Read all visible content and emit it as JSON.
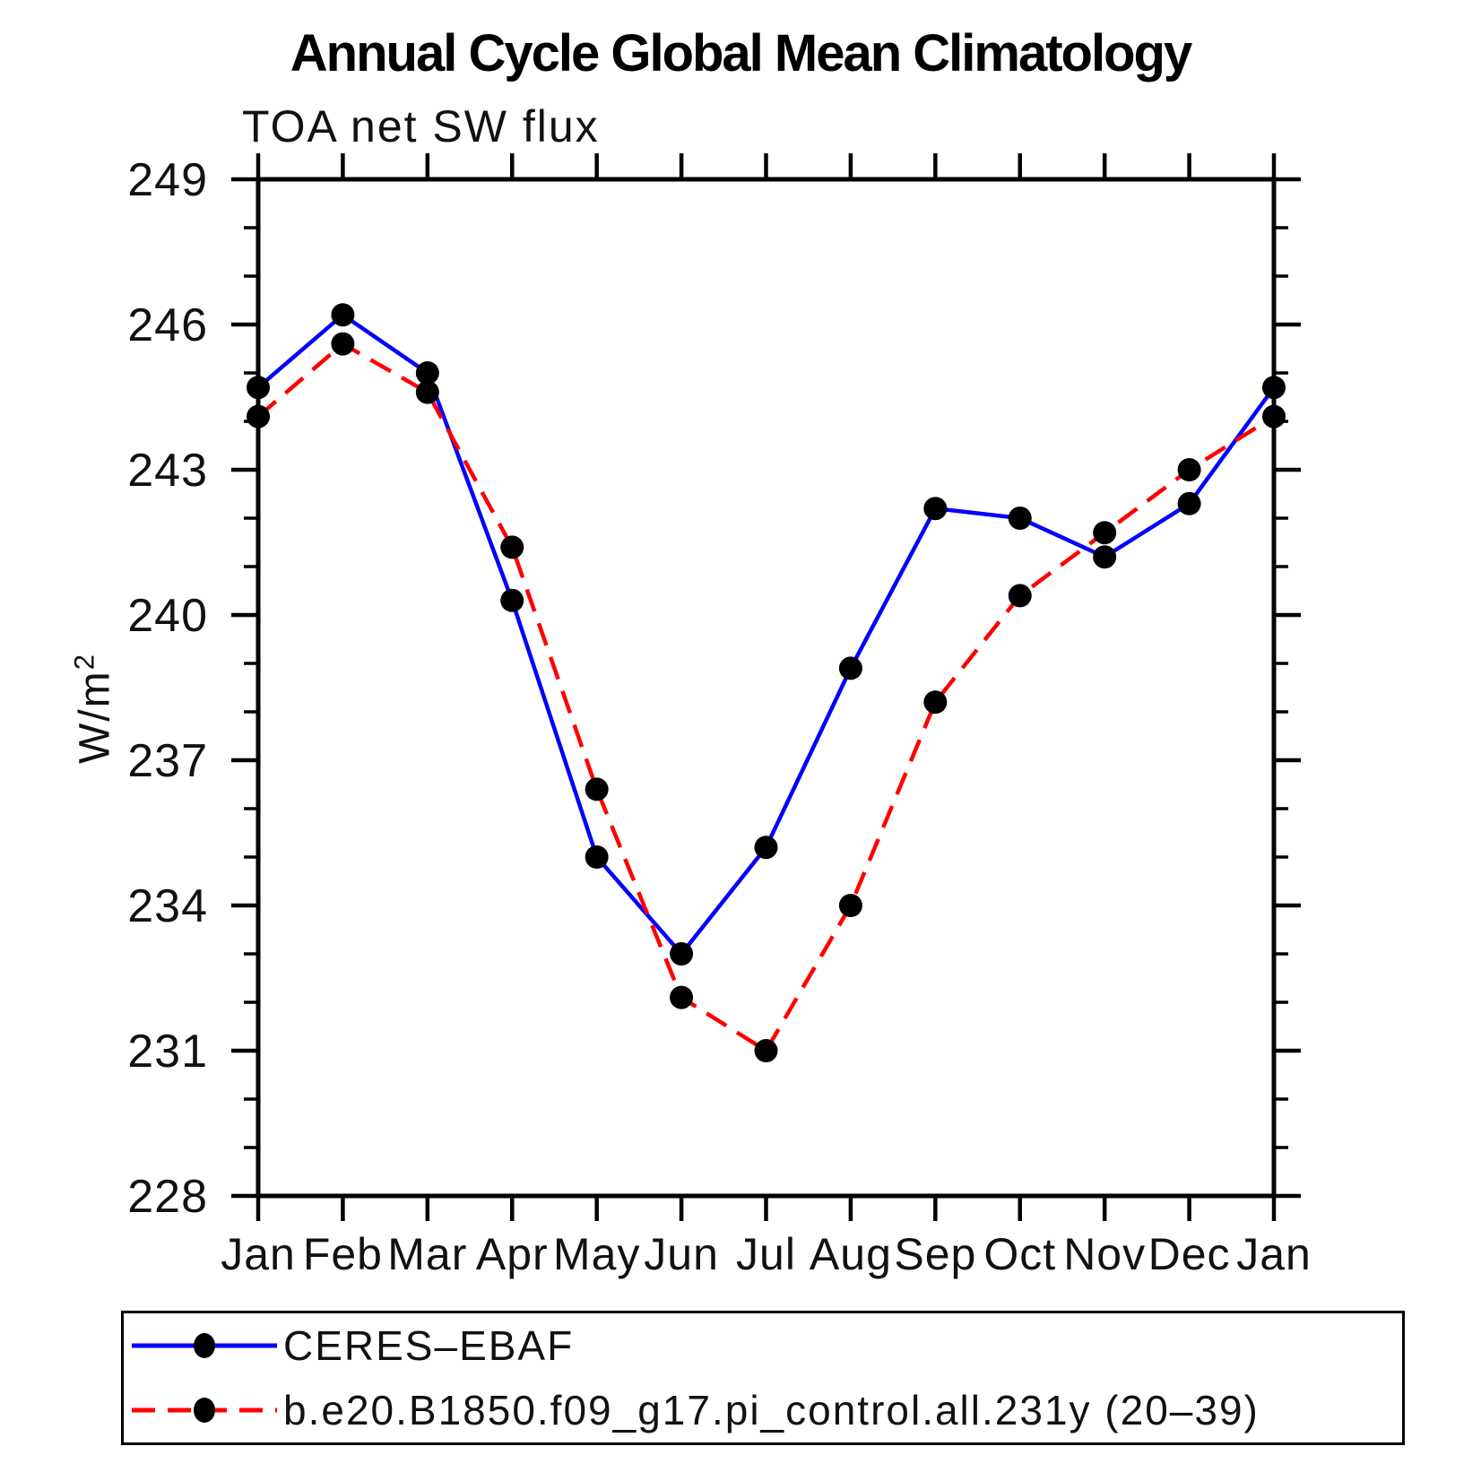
{
  "page": {
    "background": "#ffffff",
    "axis_color": "#000000"
  },
  "chart_data": {
    "type": "line",
    "title": "Annual Cycle Global Mean Climatology",
    "subtitle": "TOA net SW flux",
    "xlabel": "",
    "ylabel": "W/m²",
    "categories": [
      "Jan",
      "Feb",
      "Mar",
      "Apr",
      "May",
      "Jun",
      "Jul",
      "Aug",
      "Sep",
      "Oct",
      "Nov",
      "Dec",
      "Jan"
    ],
    "ylim": [
      228,
      249
    ],
    "y_ticks": [
      228,
      231,
      234,
      237,
      240,
      243,
      246,
      249
    ],
    "y_minor_step": 1,
    "grid": "off",
    "legend_position": "bottom-box",
    "marker": "filled-circle",
    "marker_color": "#000000",
    "series": [
      {
        "name": "CERES–EBAF",
        "color": "#0000ff",
        "style": "solid",
        "values": [
          244.7,
          246.2,
          245.0,
          240.3,
          235.0,
          233.0,
          235.2,
          238.9,
          242.2,
          242.0,
          241.2,
          242.3,
          244.7
        ]
      },
      {
        "name": "b.e20.B1850.f09_g17.pi_control.all.231y (20–39)",
        "color": "#ff0000",
        "style": "dashed",
        "values": [
          244.1,
          245.6,
          244.6,
          241.4,
          236.4,
          232.1,
          231.0,
          234.0,
          238.2,
          240.4,
          241.7,
          243.0,
          244.1
        ]
      }
    ]
  }
}
